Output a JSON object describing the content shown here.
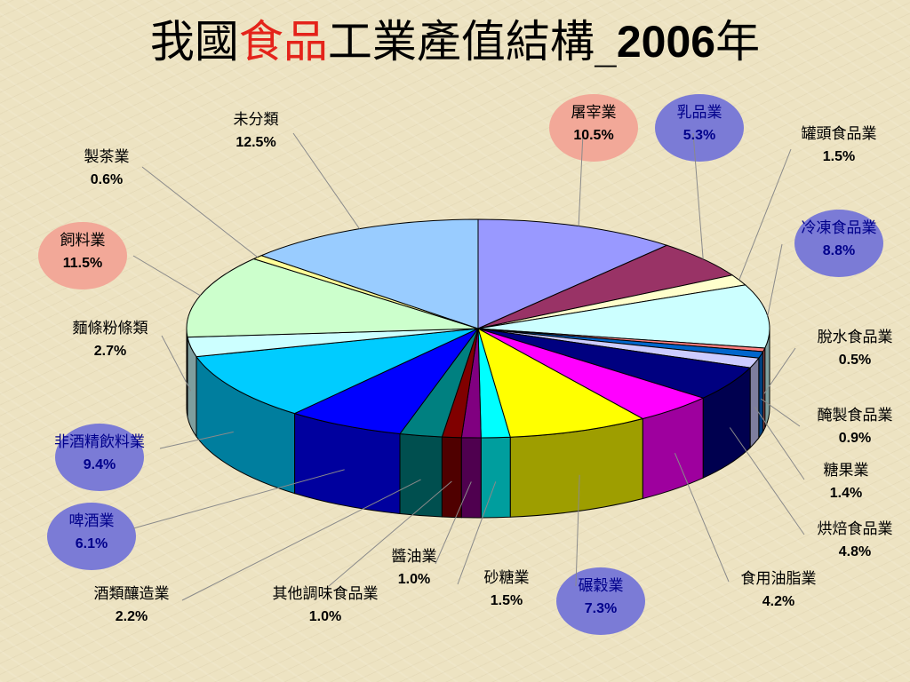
{
  "title": {
    "part1": "我國",
    "highlight": "食品",
    "part2": "工業產值結構_",
    "year": "2006",
    "part3": "年"
  },
  "colors": {
    "title_highlight": "#e4231a",
    "bubble_blue": "#7b7bd6",
    "bubble_pink": "#f2a898"
  },
  "chart_data": {
    "type": "pie",
    "style": "3d-exploded-none",
    "unit": "%",
    "slices": [
      {
        "name": "屠宰業",
        "value": 10.5,
        "label": "10.5%",
        "color": "#9999ff",
        "bubble": "pink"
      },
      {
        "name": "乳品業",
        "value": 5.3,
        "label": "5.3%",
        "color": "#993366",
        "bubble": "blue"
      },
      {
        "name": "罐頭食品業",
        "value": 1.5,
        "label": "1.5%",
        "color": "#ffffcc"
      },
      {
        "name": "冷凍食品業",
        "value": 8.8,
        "label": "8.8%",
        "color": "#ccffff",
        "bubble": "blue"
      },
      {
        "name": "脫水食品業",
        "value": 0.5,
        "label": "0.5%",
        "color": "#ff8080"
      },
      {
        "name": "醃製食品業",
        "value": 0.9,
        "label": "0.9%",
        "color": "#0066cc"
      },
      {
        "name": "糖果業",
        "value": 1.4,
        "label": "1.4%",
        "color": "#ccccff"
      },
      {
        "name": "烘焙食品業",
        "value": 4.8,
        "label": "4.8%",
        "color": "#000080"
      },
      {
        "name": "食用油脂業",
        "value": 4.2,
        "label": "4.2%",
        "color": "#ff00ff"
      },
      {
        "name": "碾穀業",
        "value": 7.3,
        "label": "7.3%",
        "color": "#ffff00",
        "bubble": "blue"
      },
      {
        "name": "砂糖業",
        "value": 1.5,
        "label": "1.5%",
        "color": "#00ffff"
      },
      {
        "name": "醬油業",
        "value": 1.0,
        "label": "1.0%",
        "color": "#800080"
      },
      {
        "name": "其他調味食品業",
        "value": 1.0,
        "label": "1.0%",
        "color": "#800000"
      },
      {
        "name": "酒類釀造業",
        "value": 2.2,
        "label": "2.2%",
        "color": "#008080"
      },
      {
        "name": "啤酒業",
        "value": 6.1,
        "label": "6.1%",
        "color": "#0000ff",
        "bubble": "blue"
      },
      {
        "name": "非酒精飲料業",
        "value": 9.4,
        "label": "9.4%",
        "color": "#00ccff",
        "bubble": "blue"
      },
      {
        "name": "麵條粉條類",
        "value": 2.7,
        "label": "2.7%",
        "color": "#ccffff"
      },
      {
        "name": "飼料業",
        "value": 11.5,
        "label": "11.5%",
        "color": "#ccffcc",
        "bubble": "pink"
      },
      {
        "name": "製茶業",
        "value": 0.6,
        "label": "0.6%",
        "color": "#ffff99"
      },
      {
        "name": "未分類",
        "value": 12.5,
        "label": "12.5%",
        "color": "#99ccff"
      }
    ]
  }
}
